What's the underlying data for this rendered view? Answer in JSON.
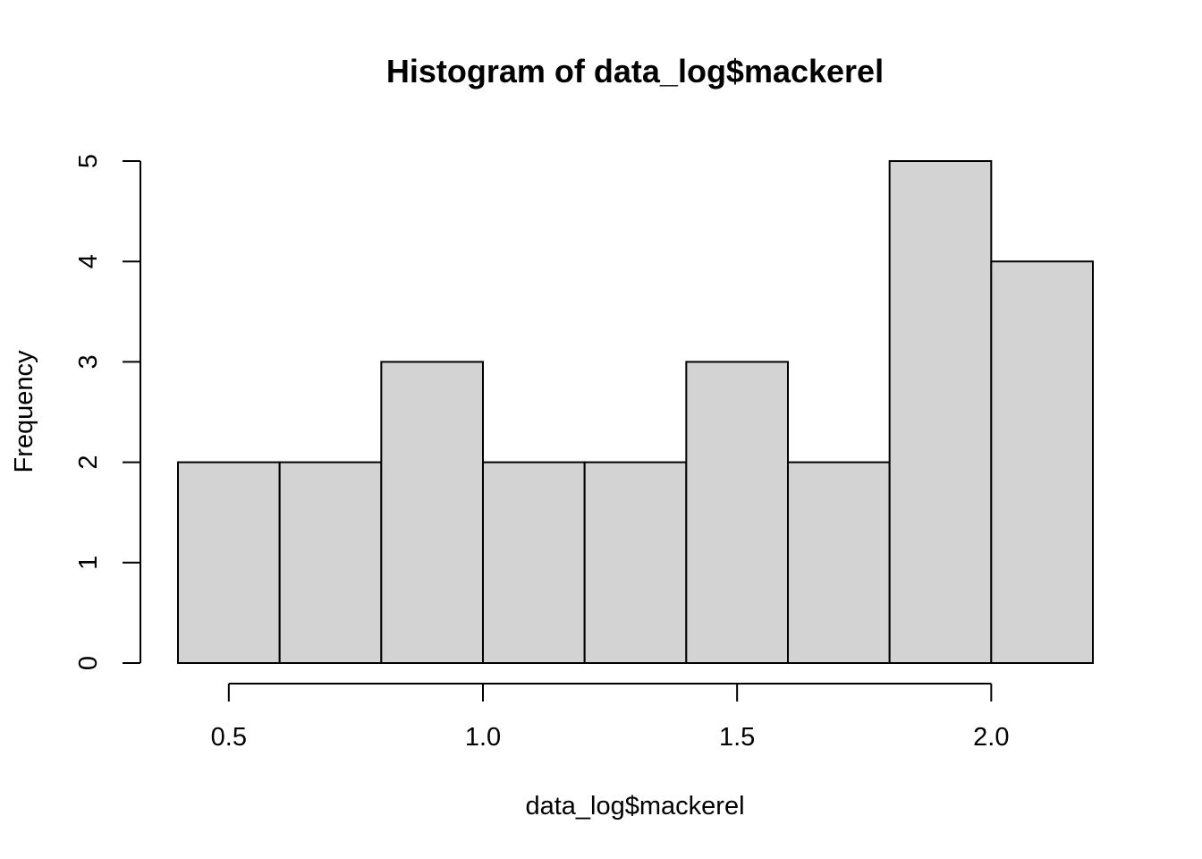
{
  "chart_data": {
    "type": "bar",
    "title": "Histogram of data_log$mackerel",
    "xlabel": "data_log$mackerel",
    "ylabel": "Frequency",
    "bin_edges": [
      0.4,
      0.6,
      0.8,
      1.0,
      1.2,
      1.4,
      1.6,
      1.8,
      2.0,
      2.2
    ],
    "values": [
      2,
      2,
      3,
      2,
      2,
      3,
      2,
      5,
      4
    ],
    "bar_color": "#d3d3d3",
    "x_ticks": [
      0.5,
      1.0,
      1.5,
      2.0
    ],
    "x_tick_labels": [
      "0.5",
      "1.0",
      "1.5",
      "2.0"
    ],
    "y_ticks": [
      0,
      1,
      2,
      3,
      4,
      5
    ],
    "y_tick_labels": [
      "0",
      "1",
      "2",
      "3",
      "4",
      "5"
    ],
    "xlim": [
      0.4,
      2.2
    ],
    "ylim": [
      0,
      5
    ],
    "grid": false,
    "legend": "none"
  }
}
